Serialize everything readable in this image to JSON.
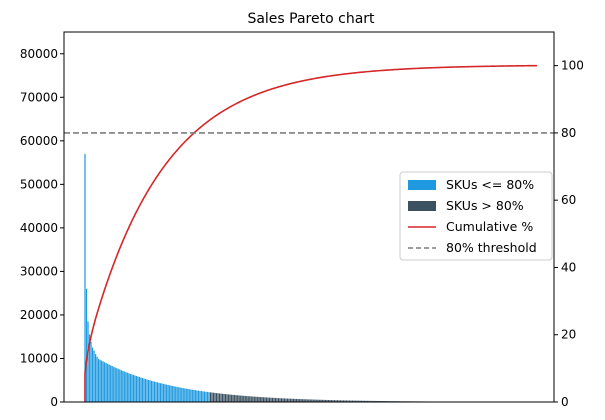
{
  "chart_data": {
    "type": "bar",
    "title": "Sales Pareto chart",
    "xlabel": "",
    "ylabel": "",
    "x_tick_labels": [],
    "ylim": [
      0,
      85000
    ],
    "y_ticks": [
      0,
      10000,
      20000,
      30000,
      40000,
      50000,
      60000,
      70000,
      80000
    ],
    "y2lim": [
      0,
      110
    ],
    "y2_ticks": [
      0,
      20,
      40,
      60,
      80,
      100
    ],
    "grid": false,
    "legend_position": "center-right",
    "sku_count": 300,
    "threshold_percent": 80,
    "bar_values_top": [
      57000,
      26000,
      18500,
      15500,
      13800,
      12500,
      11800,
      11000,
      10400,
      9900
    ],
    "bar_values_decay_rate": 0.98,
    "series": [
      {
        "name": "SKUs <= 80%",
        "kind": "bar",
        "color": "#1f9ae0",
        "sku_range": [
          1,
          83
        ]
      },
      {
        "name": "SKUs > 80%",
        "kind": "bar",
        "color": "#3b5160",
        "sku_range": [
          84,
          300
        ]
      },
      {
        "name": "Cumulative %",
        "kind": "line",
        "color": "#d62728",
        "axis": "right"
      },
      {
        "name": "80% threshold",
        "kind": "hline",
        "color": "#7f7f7f",
        "axis": "right",
        "value": 80,
        "style": "dashed"
      }
    ]
  }
}
